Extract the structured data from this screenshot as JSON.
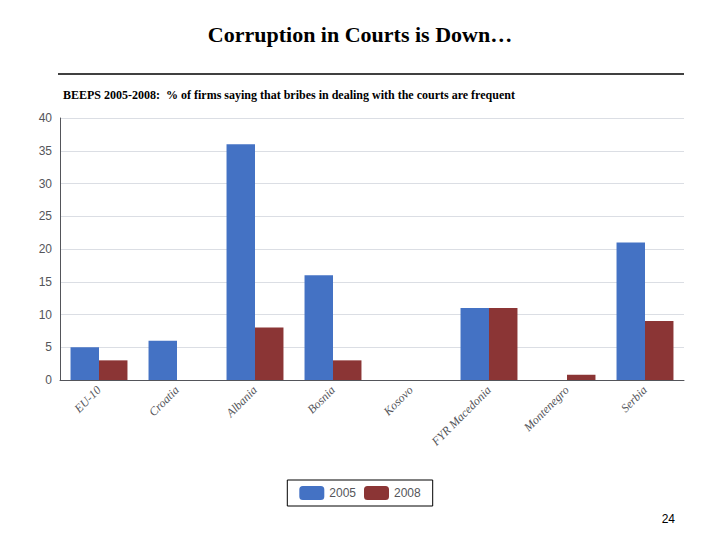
{
  "chart_data": {
    "type": "bar",
    "title": "Corruption in Courts is Down…",
    "subtitle": "BEEPS 2005-2008:  % of firms saying that bribes in dealing with the courts are frequent",
    "categories": [
      "EU-10",
      "Croatia",
      "Albania",
      "Bosnia",
      "Kosovo",
      "FYR Macedonia",
      "Montenegro",
      "Serbia"
    ],
    "series": [
      {
        "name": "2005",
        "color": "#4472C4",
        "values": [
          5,
          6,
          36,
          16,
          0,
          11,
          0,
          21
        ]
      },
      {
        "name": "2008",
        "color": "#8B3535",
        "values": [
          3,
          0,
          8,
          3,
          0,
          11,
          0.8,
          9
        ]
      }
    ],
    "ylim": [
      0,
      40
    ],
    "yticks": [
      0,
      5,
      10,
      15,
      20,
      25,
      30,
      35,
      40
    ],
    "grid": true,
    "legend": "bottom",
    "annotations": [
      "24"
    ]
  }
}
